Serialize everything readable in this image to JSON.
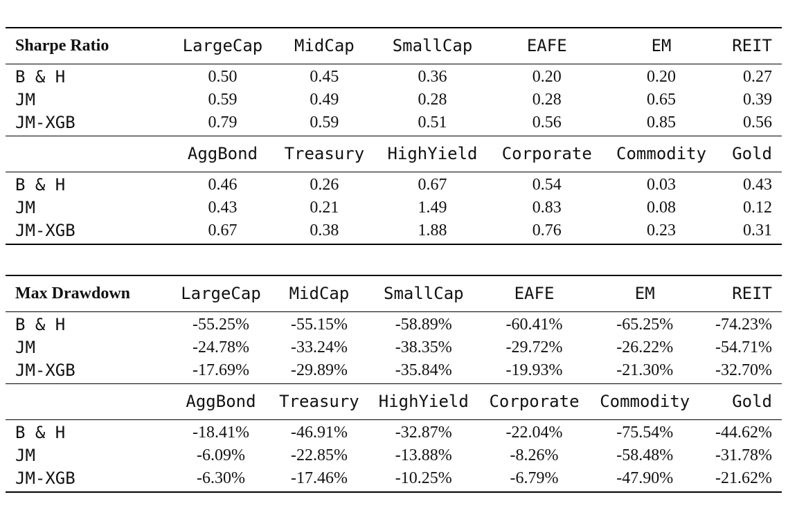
{
  "sharpe": {
    "title": "Sharpe Ratio",
    "header1": [
      "LargeCap",
      "MidCap",
      "SmallCap",
      "EAFE",
      "EM",
      "REIT"
    ],
    "header2": [
      "AggBond",
      "Treasury",
      "HighYield",
      "Corporate",
      "Commodity",
      "Gold"
    ],
    "rows1": [
      {
        "label": "B & H",
        "values": [
          "0.50",
          "0.45",
          "0.36",
          "0.20",
          "0.20",
          "0.27"
        ]
      },
      {
        "label": "JM",
        "values": [
          "0.59",
          "0.49",
          "0.28",
          "0.28",
          "0.65",
          "0.39"
        ]
      },
      {
        "label": "JM-XGB",
        "values": [
          "0.79",
          "0.59",
          "0.51",
          "0.56",
          "0.85",
          "0.56"
        ]
      }
    ],
    "rows2": [
      {
        "label": "B & H",
        "values": [
          "0.46",
          "0.26",
          "0.67",
          "0.54",
          "0.03",
          "0.43"
        ]
      },
      {
        "label": "JM",
        "values": [
          "0.43",
          "0.21",
          "1.49",
          "0.83",
          "0.08",
          "0.12"
        ]
      },
      {
        "label": "JM-XGB",
        "values": [
          "0.67",
          "0.38",
          "1.88",
          "0.76",
          "0.23",
          "0.31"
        ]
      }
    ]
  },
  "drawdown": {
    "title": "Max Drawdown",
    "header1": [
      "LargeCap",
      "MidCap",
      "SmallCap",
      "EAFE",
      "EM",
      "REIT"
    ],
    "header2": [
      "AggBond",
      "Treasury",
      "HighYield",
      "Corporate",
      "Commodity",
      "Gold"
    ],
    "rows1": [
      {
        "label": "B & H",
        "values": [
          "-55.25%",
          "-55.15%",
          "-58.89%",
          "-60.41%",
          "-65.25%",
          "-74.23%"
        ]
      },
      {
        "label": "JM",
        "values": [
          "-24.78%",
          "-33.24%",
          "-38.35%",
          "-29.72%",
          "-26.22%",
          "-54.71%"
        ]
      },
      {
        "label": "JM-XGB",
        "values": [
          "-17.69%",
          "-29.89%",
          "-35.84%",
          "-19.93%",
          "-21.30%",
          "-32.70%"
        ]
      }
    ],
    "rows2": [
      {
        "label": "B & H",
        "values": [
          "-18.41%",
          "-46.91%",
          "-32.87%",
          "-22.04%",
          "-75.54%",
          "-44.62%"
        ]
      },
      {
        "label": "JM",
        "values": [
          "-6.09%",
          "-22.85%",
          "-13.88%",
          "-8.26%",
          "-58.48%",
          "-31.78%"
        ]
      },
      {
        "label": "JM-XGB",
        "values": [
          "-6.30%",
          "-17.46%",
          "-10.25%",
          "-6.79%",
          "-47.90%",
          "-21.62%"
        ]
      }
    ]
  }
}
